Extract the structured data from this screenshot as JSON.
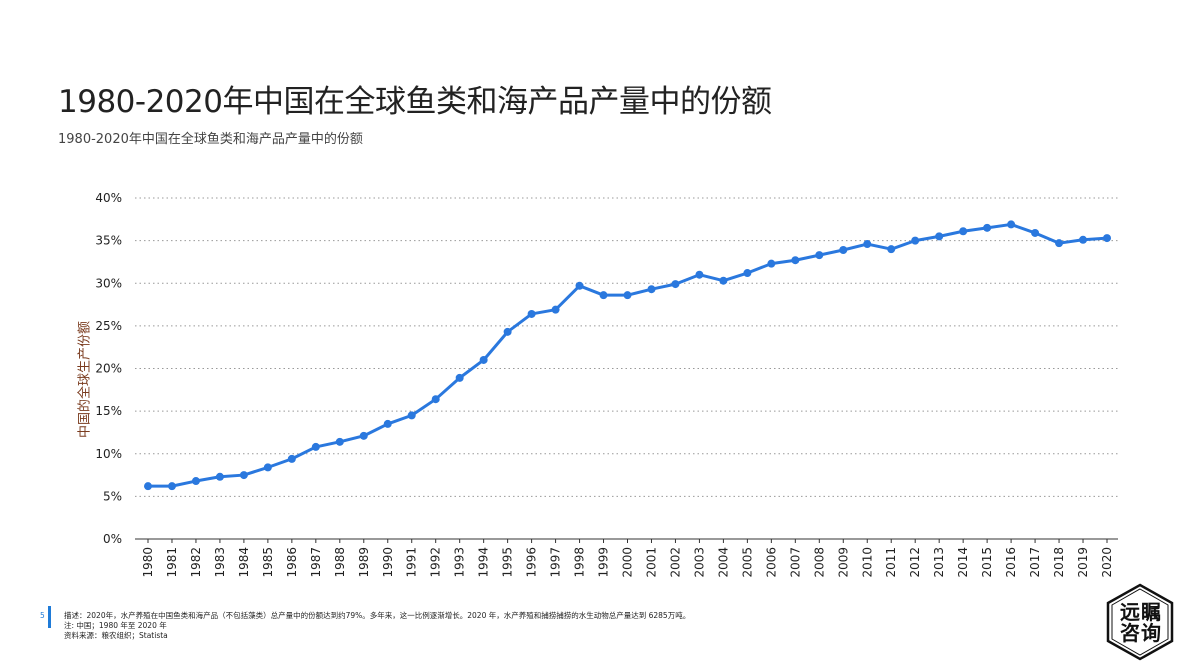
{
  "title": "1980-2020年中国在全球鱼类和海产品产量中的份额",
  "subtitle": "1980-2020年中国在全球鱼类和海产品产量中的份额",
  "footer": {
    "page_number": "5",
    "description": "描述：2020年，水产养殖在中国鱼类和海产品（不包括藻类）总产量中的份额达到约79%。多年来，这一比例逐渐增长。2020 年，水产养殖和捕捞捕捞的水生动物总产量达到 6285万吨。",
    "note": "注: 中国；1980 年至 2020 年",
    "source": "资料来源：粮农组织；Statista"
  },
  "logo": {
    "text": "远瞩咨询"
  },
  "colors": {
    "line": "#2a78de",
    "grid": "#999999",
    "accent": "#1f7bd8"
  },
  "chart_data": {
    "type": "line",
    "title": "",
    "xlabel": "",
    "ylabel": "中国的全球生产份额",
    "ylim": [
      0,
      40
    ],
    "yticks": [
      "0%",
      "5%",
      "10%",
      "15%",
      "20%",
      "25%",
      "30%",
      "35%",
      "40%"
    ],
    "grid": true,
    "x": [
      "1980",
      "1981",
      "1982",
      "1983",
      "1984",
      "1985",
      "1986",
      "1987",
      "1988",
      "1989",
      "1990",
      "1991",
      "1992",
      "1993",
      "1994",
      "1995",
      "1996",
      "1997",
      "1998",
      "1999",
      "2000",
      "2001",
      "2002",
      "2003",
      "2004",
      "2005",
      "2006",
      "2007",
      "2008",
      "2009",
      "2010",
      "2011",
      "2012",
      "2013",
      "2014",
      "2015",
      "2016",
      "2017",
      "2018",
      "2019",
      "2020"
    ],
    "values": [
      6.2,
      6.2,
      6.8,
      7.3,
      7.5,
      8.4,
      9.4,
      10.8,
      11.4,
      12.1,
      13.5,
      14.5,
      16.4,
      18.9,
      21.0,
      24.3,
      26.4,
      26.9,
      29.7,
      28.6,
      28.6,
      29.3,
      29.9,
      31.0,
      30.3,
      31.2,
      32.3,
      32.7,
      33.3,
      33.9,
      34.6,
      34.0,
      35.0,
      35.5,
      36.1,
      36.5,
      36.9,
      35.9,
      34.7,
      35.1,
      35.3
    ]
  }
}
